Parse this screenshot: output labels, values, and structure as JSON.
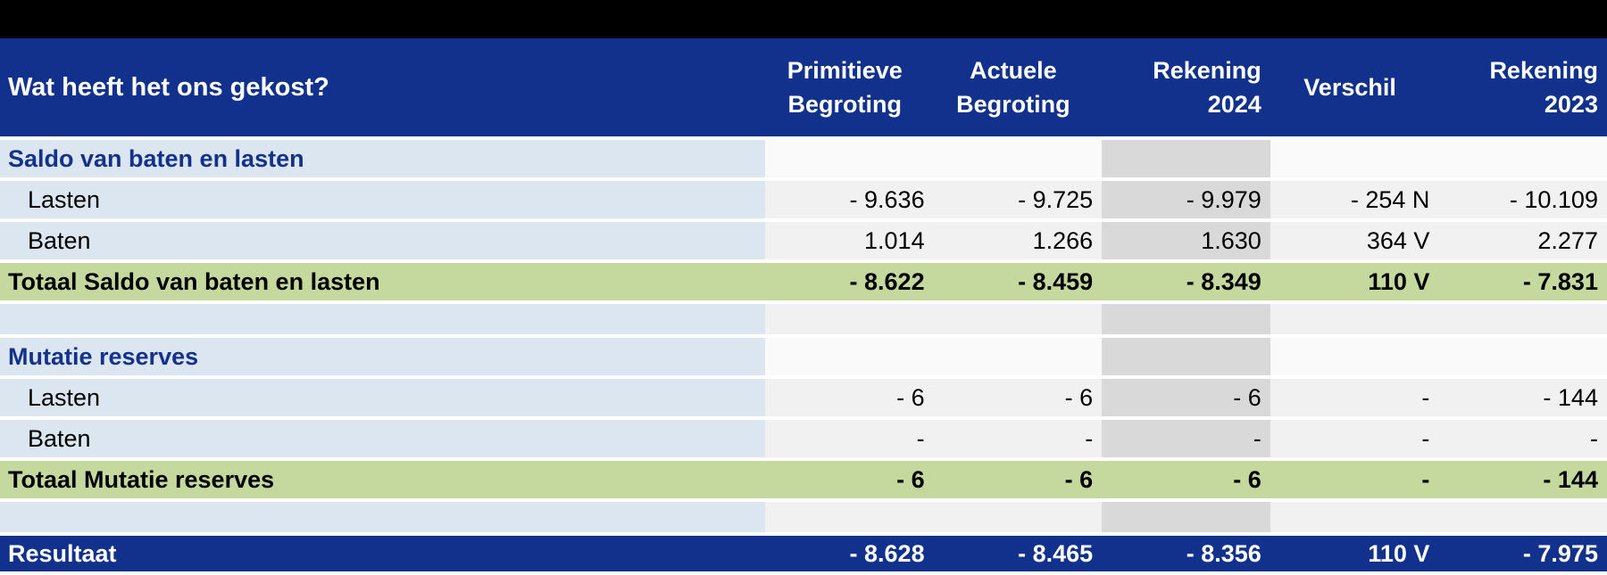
{
  "table": {
    "title": "Wat heeft het ons gekost?",
    "columns": [
      {
        "id": "primitieve-begroting",
        "lines": [
          "Primitieve",
          "Begroting"
        ],
        "align": "center"
      },
      {
        "id": "actuele-begroting",
        "lines": [
          "Actuele",
          "Begroting"
        ],
        "align": "center"
      },
      {
        "id": "rekening-2024",
        "lines": [
          "Rekening",
          "2024"
        ],
        "align": "right"
      },
      {
        "id": "verschil",
        "lines": [
          "Verschil"
        ],
        "align": "center"
      },
      {
        "id": "rekening-2023",
        "lines": [
          "Rekening",
          "2023"
        ],
        "align": "right"
      }
    ],
    "highlighted_column_id": "rekening-2024",
    "rows": [
      {
        "id": "saldo-section",
        "type": "section",
        "label": "Saldo van baten en lasten",
        "values": [
          "",
          "",
          "",
          "",
          ""
        ]
      },
      {
        "id": "saldo-lasten",
        "type": "data",
        "label": "Lasten",
        "values": [
          "- 9.636",
          "- 9.725",
          "- 9.979",
          "- 254 N",
          "- 10.109"
        ]
      },
      {
        "id": "saldo-baten",
        "type": "data",
        "label": "Baten",
        "values": [
          "1.014",
          "1.266",
          "1.630",
          "364 V",
          "2.277"
        ]
      },
      {
        "id": "saldo-totaal",
        "type": "total",
        "label": "Totaal Saldo van baten en lasten",
        "values": [
          "- 8.622",
          "- 8.459",
          "- 8.349",
          "110 V",
          "- 7.831"
        ]
      },
      {
        "id": "spacer-1",
        "type": "spacer",
        "label": "",
        "values": [
          "",
          "",
          "",
          "",
          ""
        ]
      },
      {
        "id": "mutatie-section",
        "type": "section",
        "label": "Mutatie reserves",
        "values": [
          "",
          "",
          "",
          "",
          ""
        ]
      },
      {
        "id": "mutatie-lasten",
        "type": "data",
        "label": "Lasten",
        "values": [
          "- 6",
          "- 6",
          "- 6",
          "-",
          "- 144"
        ]
      },
      {
        "id": "mutatie-baten",
        "type": "data",
        "label": "Baten",
        "values": [
          "-",
          "-",
          "-",
          "-",
          "-"
        ]
      },
      {
        "id": "mutatie-totaal",
        "type": "total",
        "label": "Totaal Mutatie reserves",
        "values": [
          "- 6",
          "- 6",
          "- 6",
          "-",
          "- 144"
        ]
      },
      {
        "id": "spacer-2",
        "type": "spacer",
        "label": "",
        "values": [
          "",
          "",
          "",
          "",
          ""
        ]
      },
      {
        "id": "resultaat",
        "type": "result",
        "label": "Resultaat",
        "values": [
          "- 8.628",
          "- 8.465",
          "- 8.356",
          "110 V",
          "- 7.975"
        ]
      }
    ]
  },
  "colors": {
    "header-blue": "#11318C",
    "section-text-blue": "#14328C",
    "label-col-blue": "#DCE6F1",
    "row-gray": "#F1F1F1",
    "section-row-bg": "#FAFAFA",
    "highlight-col-gray": "#D9D9D9",
    "total-green": "#C5D89E",
    "top-bar-black": "#000000",
    "text-white": "#FFFFFF",
    "text-black": "#000000"
  }
}
